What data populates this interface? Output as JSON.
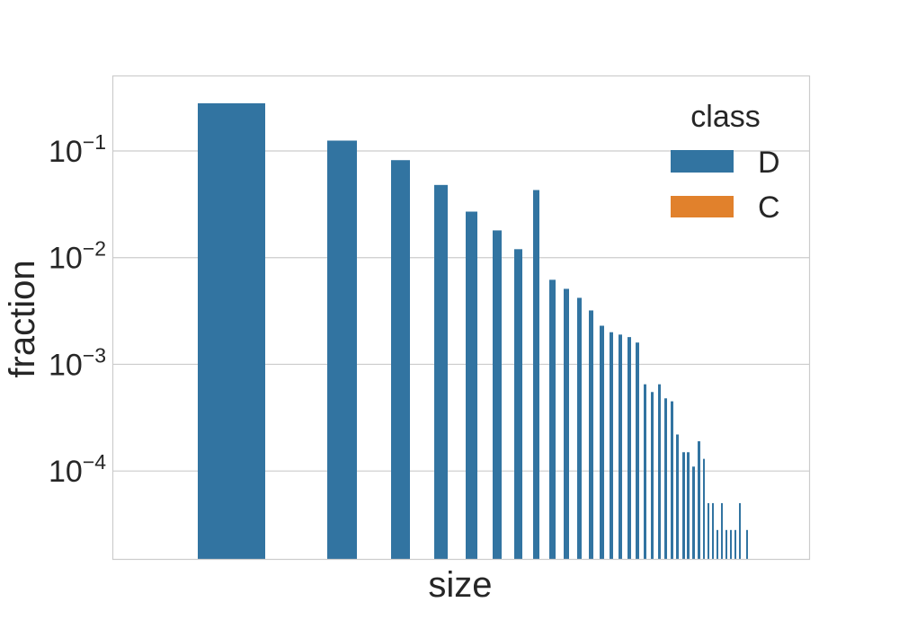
{
  "chart_data": {
    "type": "bar",
    "xlabel": "size",
    "ylabel": "fraction",
    "yscale": "log",
    "ylim": [
      1.5e-05,
      0.5
    ],
    "yticks": [
      {
        "base": "10",
        "exp": "−1",
        "value": 0.1
      },
      {
        "base": "10",
        "exp": "−2",
        "value": 0.01
      },
      {
        "base": "10",
        "exp": "−3",
        "value": 0.001
      },
      {
        "base": "10",
        "exp": "−4",
        "value": 0.0001
      }
    ],
    "grid": true,
    "x_tick_labels_shown": false,
    "legend": {
      "title": "class",
      "placement": "top-right"
    },
    "series": [
      {
        "name": "D",
        "color": "#3274a1",
        "values": [
          0.28,
          0.125,
          0.082,
          0.048,
          0.027,
          0.018,
          0.012,
          0.043,
          0.0062,
          0.0051,
          0.0042,
          0.0032,
          0.0023,
          0.002,
          0.0019,
          0.0018,
          0.0016,
          0.00065,
          0.00055,
          0.00065,
          0.00048,
          0.00045,
          0.00022,
          0.00015,
          0.00015,
          0.00011,
          0.00019,
          0.00013,
          5e-05,
          5e-05,
          2.8e-05,
          5e-05,
          2.8e-05,
          2.8e-05,
          2.8e-05,
          5e-05,
          2.8e-05
        ]
      },
      {
        "name": "C",
        "color": "#e1812c",
        "values": []
      }
    ]
  }
}
